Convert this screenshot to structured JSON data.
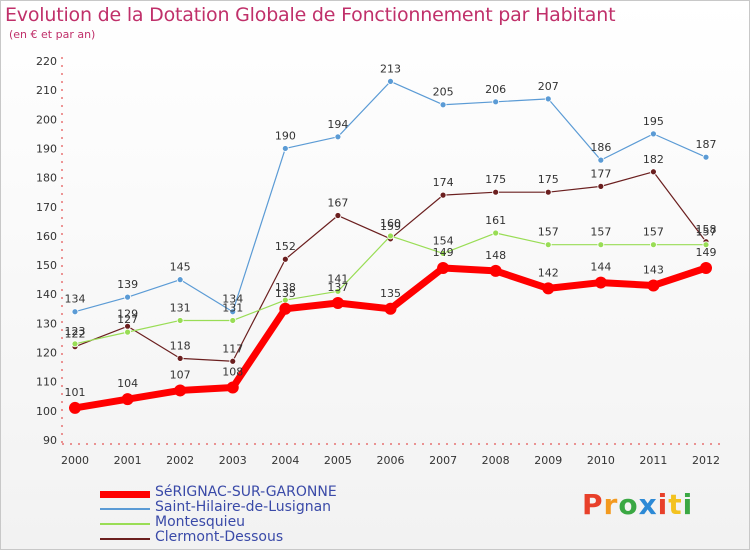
{
  "title": "Evolution de la Dotation Globale de Fonctionnement par Habitant",
  "subtitle": "(en € et par an)",
  "logo": {
    "text": "Proxiti",
    "colors": [
      "#e8402a",
      "#f39a1f",
      "#3aa843",
      "#2d8ad6",
      "#e8402a",
      "#f3c21f",
      "#3aa843"
    ]
  },
  "chart_data": {
    "type": "line",
    "title": "Evolution de la Dotation Globale de Fonctionnement par Habitant",
    "subtitle": "(en € et par an)",
    "x": [
      "2000",
      "2001",
      "2002",
      "2003",
      "2004",
      "2005",
      "2006",
      "2007",
      "2008",
      "2009",
      "2010",
      "2011",
      "2012"
    ],
    "ylim": [
      90,
      220
    ],
    "yticks": [
      90,
      100,
      110,
      120,
      130,
      140,
      150,
      160,
      170,
      180,
      190,
      200,
      210,
      220
    ],
    "grid": false,
    "legend_position": "bottom-left",
    "series": [
      {
        "name": "SéRIGNAC-SUR-GARONNE",
        "color": "#ff0000",
        "labels": [
          "101",
          "104",
          "107",
          "108",
          "135",
          "137",
          "135",
          "149",
          "148",
          "142",
          "144",
          "143",
          "149"
        ],
        "values": [
          101,
          104,
          107,
          108,
          135,
          137,
          135,
          149,
          148,
          142,
          144,
          143,
          149
        ]
      },
      {
        "name": "Saint-Hilaire-de-Lusignan",
        "color": "#5b9bd5",
        "labels": [
          "134",
          "139",
          "145",
          "134",
          "190",
          "194",
          "213",
          "205",
          "206",
          "207",
          "186",
          "195",
          "187"
        ],
        "values": [
          134,
          139,
          145,
          134,
          190,
          194,
          213,
          205,
          206,
          207,
          186,
          195,
          187
        ]
      },
      {
        "name": "Montesquieu",
        "color": "#99dd55",
        "labels": [
          "123",
          "127",
          "131",
          "131",
          "138",
          "141",
          "160",
          "154",
          "161",
          "157",
          "157",
          "157",
          "157"
        ],
        "values": [
          123,
          127,
          131,
          131,
          138,
          141,
          160,
          154,
          161,
          157,
          157,
          157,
          157
        ]
      },
      {
        "name": "Clermont-Dessous",
        "color": "#6b1f1f",
        "labels": [
          "122",
          "129",
          "118",
          "117",
          "152",
          "167",
          "159",
          "174",
          "175",
          "175",
          "177",
          "182",
          "158"
        ],
        "values": [
          122,
          129,
          118,
          117,
          152,
          167,
          159,
          174,
          175,
          175,
          177,
          182,
          158
        ]
      }
    ]
  }
}
